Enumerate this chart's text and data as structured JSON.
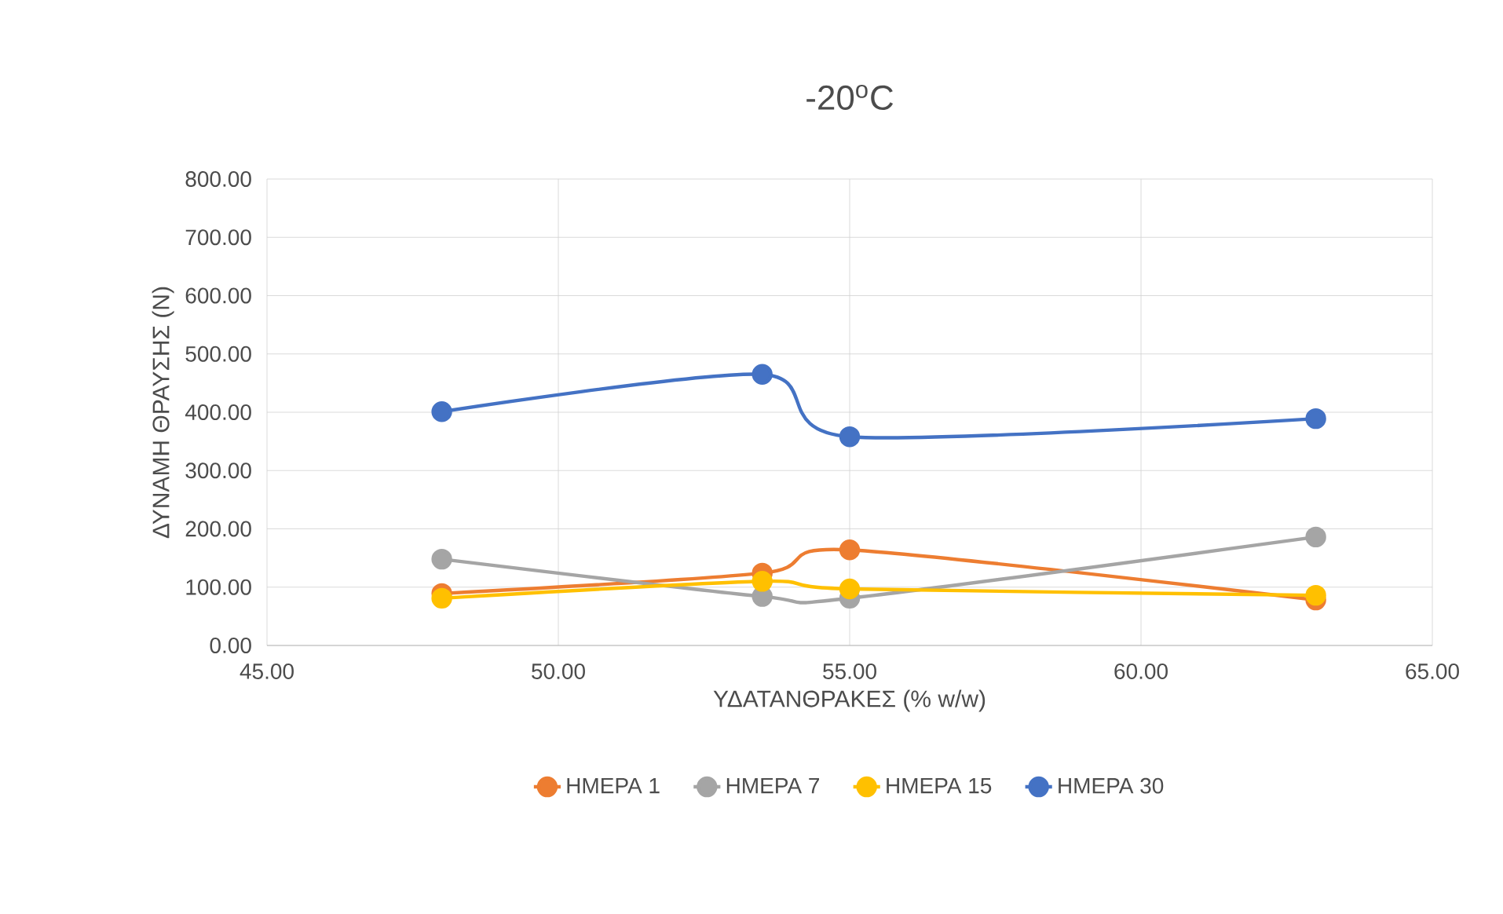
{
  "chart_data": {
    "type": "line",
    "title": "-20$^{o}$C",
    "xlabel": "ΥΔΑΤΑΝΘΡΑΚΕΣ (% w/w)",
    "ylabel": "ΔΥΝΑΜΗ ΘΡΑΥΣΗΣ (N)",
    "x": [
      48,
      53.5,
      55,
      63
    ],
    "series": [
      {
        "name": "ΗΜΕΡΑ 1",
        "color": "#ed7d31",
        "values": [
          89,
          124,
          164,
          78
        ]
      },
      {
        "name": "ΗΜΕΡΑ 7",
        "color": "#a5a5a5",
        "values": [
          148,
          84,
          81,
          186
        ]
      },
      {
        "name": "ΗΜΕΡΑ 15",
        "color": "#ffc000",
        "values": [
          81,
          110,
          97,
          86
        ]
      },
      {
        "name": "ΗΜΕΡΑ 30",
        "color": "#4472c4",
        "values": [
          401,
          465,
          358,
          389
        ]
      }
    ],
    "xlim": [
      45,
      65
    ],
    "xticks": [
      {
        "value": 45,
        "label": "45.00"
      },
      {
        "value": 50,
        "label": "50.00"
      },
      {
        "value": 55,
        "label": "55.00"
      },
      {
        "value": 60,
        "label": "60.00"
      },
      {
        "value": 65,
        "label": "65.00"
      }
    ],
    "ylim": [
      0,
      800
    ],
    "yticks": [
      {
        "value": 0,
        "label": "0.00"
      },
      {
        "value": 100,
        "label": "100.00"
      },
      {
        "value": 200,
        "label": "200.00"
      },
      {
        "value": 300,
        "label": "300.00"
      },
      {
        "value": 400,
        "label": "400.00"
      },
      {
        "value": 500,
        "label": "500.00"
      },
      {
        "value": 600,
        "label": "600.00"
      },
      {
        "value": 700,
        "label": "700.00"
      },
      {
        "value": 800,
        "label": "800.00"
      }
    ],
    "grid": true,
    "legend": "bottom",
    "marker": "circle"
  }
}
